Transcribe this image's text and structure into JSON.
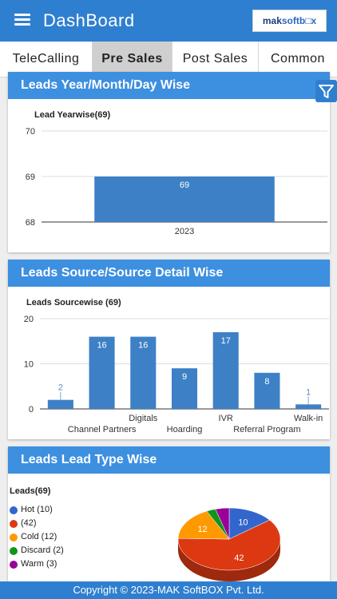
{
  "header": {
    "title": "DashBoard",
    "logo_text": "maksoftbox"
  },
  "tabs": [
    {
      "label": "TeleCalling"
    },
    {
      "label": "Pre Sales"
    },
    {
      "label": "Post Sales"
    },
    {
      "label": "Common"
    }
  ],
  "active_tab": "Pre Sales",
  "colors": {
    "accent": "#2f7fd0",
    "card_header": "#3d8fe0",
    "bar": "#3d80c6"
  },
  "cards": {
    "year": {
      "title": "Leads Year/Month/Day Wise"
    },
    "source": {
      "title": "Leads Source/Source Detail Wise"
    },
    "type": {
      "title": "Leads Lead Type Wise"
    }
  },
  "chart_data": [
    {
      "type": "bar",
      "title": "Lead Yearwise(69)",
      "categories": [
        "2023"
      ],
      "values": [
        69
      ],
      "ylim": [
        68,
        70
      ],
      "yticks": [
        68,
        69,
        70
      ],
      "grid": true
    },
    {
      "type": "bar",
      "title": "Leads Sourcewise (69)",
      "categories": [
        "",
        "Channel Partners",
        "Digitals",
        "Hoarding",
        "IVR",
        "Referral Program",
        "Walk-in"
      ],
      "values": [
        2,
        16,
        16,
        9,
        17,
        8,
        1
      ],
      "ylim": [
        0,
        20
      ],
      "yticks": [
        0,
        10,
        20
      ],
      "grid": true
    },
    {
      "type": "pie",
      "title": "Leads(69)",
      "legend_position": "left",
      "slices": [
        {
          "label": "Hot (10)",
          "value": 10,
          "color": "#3366cc"
        },
        {
          "label": "(42)",
          "value": 42,
          "color": "#dc3912"
        },
        {
          "label": "Cold (12)",
          "value": 12,
          "color": "#ff9900"
        },
        {
          "label": "Discard (2)",
          "value": 2,
          "color": "#109618"
        },
        {
          "label": "Warm (3)",
          "value": 3,
          "color": "#990099"
        }
      ]
    }
  ],
  "footer": {
    "prefix": "Copyright © 2023-",
    "company": "MAK SoftBOX Pvt. Ltd."
  }
}
